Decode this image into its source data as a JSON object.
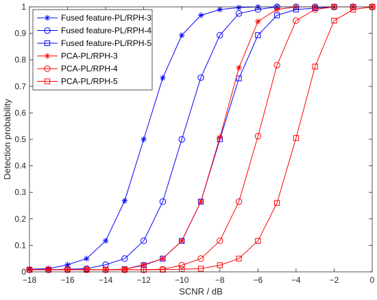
{
  "chart_data": {
    "type": "line",
    "title": "",
    "xlabel": "SCNR / dB",
    "ylabel": "Detection probability",
    "xlim": [
      -18,
      0
    ],
    "ylim": [
      0,
      1
    ],
    "xticks": [
      -18,
      -16,
      -14,
      -12,
      -10,
      -8,
      -6,
      -4,
      -2,
      0
    ],
    "xtick_labels": [
      "−18",
      "−16",
      "−14",
      "−12",
      "−10",
      "−8",
      "−6",
      "−4",
      "−2",
      "0"
    ],
    "yticks": [
      0,
      0.1,
      0.2,
      0.3,
      0.4,
      0.5,
      0.6,
      0.7,
      0.8,
      0.9,
      1
    ],
    "ytick_labels": [
      "0",
      "0.1",
      "0.2",
      "0.3",
      "0.4",
      "0.5",
      "0.6",
      "0.7",
      "0.8",
      "0.9",
      "1"
    ],
    "grid": false,
    "legend_position": "top-left",
    "x": [
      -18,
      -17,
      -16,
      -15,
      -14,
      -13,
      -12,
      -11,
      -10,
      -9,
      -8,
      -7,
      -6,
      -5,
      -4,
      -3,
      -2,
      -1,
      0
    ],
    "series": [
      {
        "name": "Fused feature-PL/RPH-3",
        "color": "#0000ff",
        "marker": "asterisk",
        "values": [
          0.01,
          0.012,
          0.027,
          0.05,
          0.117,
          0.268,
          0.5,
          0.732,
          0.893,
          0.968,
          0.99,
          0.997,
          1,
          1,
          1,
          1,
          1,
          1,
          1
        ]
      },
      {
        "name": "Fused feature-PL/RPH-4",
        "color": "#0000ff",
        "marker": "circle",
        "values": [
          0.008,
          0.008,
          0.01,
          0.012,
          0.027,
          0.05,
          0.117,
          0.265,
          0.5,
          0.733,
          0.893,
          0.975,
          0.99,
          1,
          1,
          1,
          1,
          1,
          1
        ]
      },
      {
        "name": "Fused feature-PL/RPH-5",
        "color": "#0000ff",
        "marker": "square",
        "values": [
          0.008,
          0.008,
          0.008,
          0.008,
          0.008,
          0.01,
          0.025,
          0.05,
          0.117,
          0.265,
          0.5,
          0.73,
          0.893,
          0.968,
          0.99,
          0.995,
          1,
          1,
          1
        ]
      },
      {
        "name": "PCA-PL/RPH-3",
        "color": "#ff0000",
        "marker": "asterisk",
        "values": [
          0.008,
          0.008,
          0.008,
          0.008,
          0.008,
          0.01,
          0.027,
          0.05,
          0.117,
          0.265,
          0.507,
          0.77,
          0.945,
          0.99,
          1,
          1,
          1,
          1,
          1
        ]
      },
      {
        "name": "PCA-PL/RPH-4",
        "color": "#ff0000",
        "marker": "circle",
        "values": [
          0.008,
          0.008,
          0.008,
          0.008,
          0.008,
          0.008,
          0.008,
          0.01,
          0.025,
          0.05,
          0.117,
          0.265,
          0.512,
          0.78,
          0.948,
          0.99,
          1,
          1,
          1
        ]
      },
      {
        "name": "PCA-PL/RPH-5",
        "color": "#ff0000",
        "marker": "square",
        "values": [
          0.008,
          0.008,
          0.008,
          0.008,
          0.008,
          0.008,
          0.008,
          0.008,
          0.01,
          0.012,
          0.025,
          0.05,
          0.117,
          0.26,
          0.505,
          0.775,
          0.948,
          0.99,
          1
        ]
      }
    ]
  }
}
